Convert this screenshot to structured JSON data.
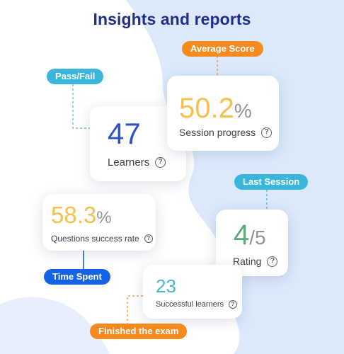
{
  "title": "Insights and reports",
  "tags": {
    "average_score": "Average Score",
    "pass_fail": "Pass/Fail",
    "last_session": "Last Session",
    "time_spent": "Time Spent",
    "finished_exam": "Finished the exam"
  },
  "cards": {
    "learners": {
      "value": "47",
      "label": "Learners"
    },
    "session_progress": {
      "value": "50.2",
      "unit": "%",
      "label": "Session progress"
    },
    "questions_success": {
      "value": "58.3",
      "unit": "%",
      "label": "Questions success rate"
    },
    "rating": {
      "value": "4",
      "unit": "/5",
      "label": "Rating"
    },
    "successful_learners": {
      "value": "23",
      "label": "Successful learners"
    }
  },
  "help_glyph": "?",
  "colors": {
    "title": "#1f2d8c",
    "orange": "#f58a1f",
    "teal": "#3ab6dc",
    "blue": "#1463e6",
    "learners_value": "#2c55c9",
    "percent_value": "#f6c04f",
    "rating_value": "#5daa7b",
    "successful_value": "#49b6c8",
    "background_blob": "#dbe9fb"
  }
}
